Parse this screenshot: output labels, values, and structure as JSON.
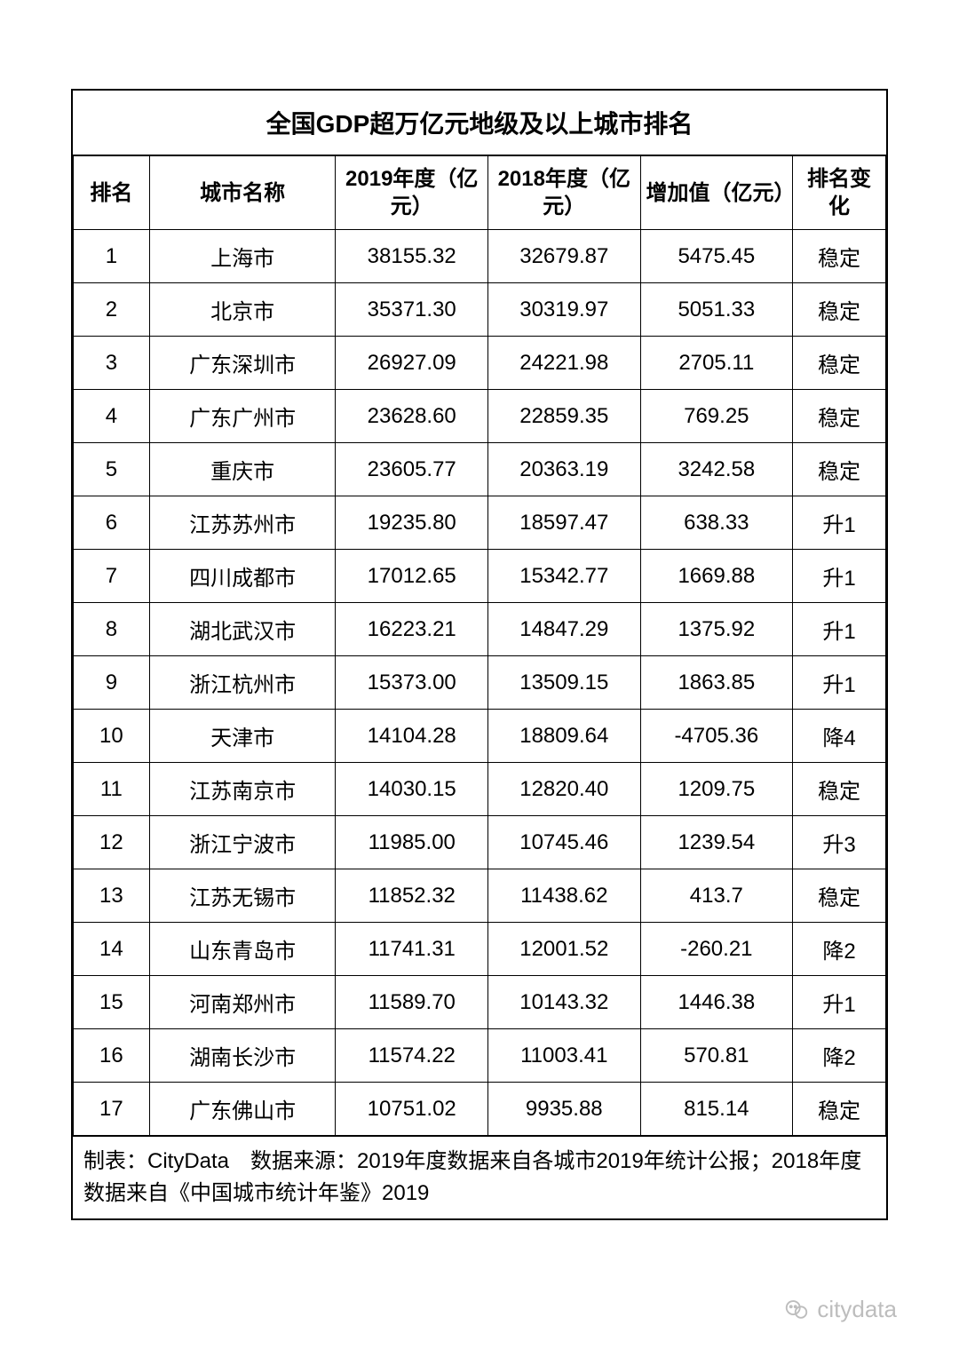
{
  "table": {
    "title": "全国GDP超万亿元地级及以上城市排名",
    "columns": {
      "rank": "排名",
      "city": "城市名称",
      "y2019": "2019年度（亿元）",
      "y2018": "2018年度（亿元）",
      "diff": "增加值（亿元）",
      "change": "排名变化"
    },
    "rows": [
      {
        "rank": "1",
        "city": "上海市",
        "y2019": "38155.32",
        "y2018": "32679.87",
        "diff": "5475.45",
        "change": "稳定"
      },
      {
        "rank": "2",
        "city": "北京市",
        "y2019": "35371.30",
        "y2018": "30319.97",
        "diff": "5051.33",
        "change": "稳定"
      },
      {
        "rank": "3",
        "city": "广东深圳市",
        "y2019": "26927.09",
        "y2018": "24221.98",
        "diff": "2705.11",
        "change": "稳定"
      },
      {
        "rank": "4",
        "city": "广东广州市",
        "y2019": "23628.60",
        "y2018": "22859.35",
        "diff": "769.25",
        "change": "稳定"
      },
      {
        "rank": "5",
        "city": "重庆市",
        "y2019": "23605.77",
        "y2018": "20363.19",
        "diff": "3242.58",
        "change": "稳定"
      },
      {
        "rank": "6",
        "city": "江苏苏州市",
        "y2019": "19235.80",
        "y2018": "18597.47",
        "diff": "638.33",
        "change": "升1"
      },
      {
        "rank": "7",
        "city": "四川成都市",
        "y2019": "17012.65",
        "y2018": "15342.77",
        "diff": "1669.88",
        "change": "升1"
      },
      {
        "rank": "8",
        "city": "湖北武汉市",
        "y2019": "16223.21",
        "y2018": "14847.29",
        "diff": "1375.92",
        "change": "升1"
      },
      {
        "rank": "9",
        "city": "浙江杭州市",
        "y2019": "15373.00",
        "y2018": "13509.15",
        "diff": "1863.85",
        "change": "升1"
      },
      {
        "rank": "10",
        "city": "天津市",
        "y2019": "14104.28",
        "y2018": "18809.64",
        "diff": "-4705.36",
        "change": "降4"
      },
      {
        "rank": "11",
        "city": "江苏南京市",
        "y2019": "14030.15",
        "y2018": "12820.40",
        "diff": "1209.75",
        "change": "稳定"
      },
      {
        "rank": "12",
        "city": "浙江宁波市",
        "y2019": "11985.00",
        "y2018": "10745.46",
        "diff": "1239.54",
        "change": "升3"
      },
      {
        "rank": "13",
        "city": "江苏无锡市",
        "y2019": "11852.32",
        "y2018": "11438.62",
        "diff": "413.7",
        "change": "稳定"
      },
      {
        "rank": "14",
        "city": "山东青岛市",
        "y2019": "11741.31",
        "y2018": "12001.52",
        "diff": "-260.21",
        "change": "降2"
      },
      {
        "rank": "15",
        "city": "河南郑州市",
        "y2019": "11589.70",
        "y2018": "10143.32",
        "diff": "1446.38",
        "change": "升1"
      },
      {
        "rank": "16",
        "city": "湖南长沙市",
        "y2019": "11574.22",
        "y2018": "11003.41",
        "diff": "570.81",
        "change": "降2"
      },
      {
        "rank": "17",
        "city": "广东佛山市",
        "y2019": "10751.02",
        "y2018": "9935.88",
        "diff": "815.14",
        "change": "稳定"
      }
    ],
    "footer": "制表：CityData　数据来源：2019年度数据来自各城市2019年统计公报；2018年度数据来自《中国城市统计年鉴》2019"
  },
  "watermark": {
    "text": "citydata"
  },
  "styling": {
    "border_color": "#000000",
    "text_color": "#000000",
    "background_color": "#ffffff",
    "watermark_color": "#bdbdbd",
    "title_fontsize": 28,
    "header_fontsize": 24,
    "cell_fontsize": 24,
    "footer_fontsize": 24
  }
}
